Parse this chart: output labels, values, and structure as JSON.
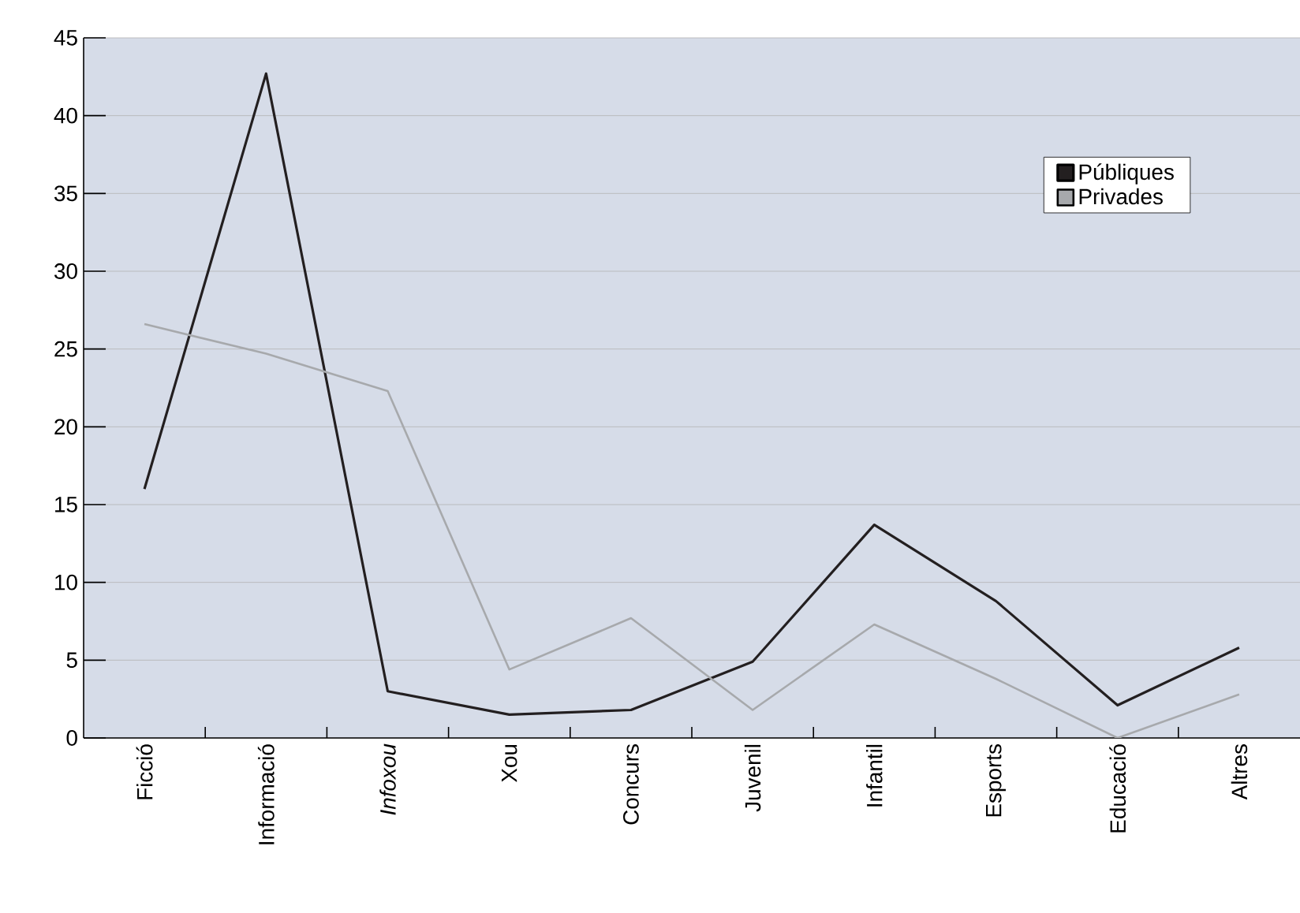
{
  "chart_data": {
    "type": "line",
    "categories": [
      "Ficció",
      "Informació",
      "*Infoxou*",
      "Xou",
      "Concurs",
      "Juvenil",
      "Infantil",
      "Esports",
      "Educació",
      "Altres"
    ],
    "series": [
      {
        "name": "Públiques",
        "color": "#231f20",
        "values": [
          16,
          42.7,
          3,
          1.5,
          1.8,
          4.9,
          13.7,
          8.8,
          2.1,
          5.8
        ]
      },
      {
        "name": "Privades",
        "color": "#a7a9ac",
        "values": [
          26.6,
          24.7,
          22.3,
          4.4,
          7.7,
          1.8,
          7.3,
          3.8,
          0,
          2.8
        ]
      }
    ],
    "ylim": [
      0,
      45
    ],
    "yticks": [
      0,
      5,
      10,
      15,
      20,
      25,
      30,
      35,
      40,
      45
    ],
    "grid": "y",
    "legend": "top right",
    "marker": "none",
    "line_style": "solid"
  }
}
